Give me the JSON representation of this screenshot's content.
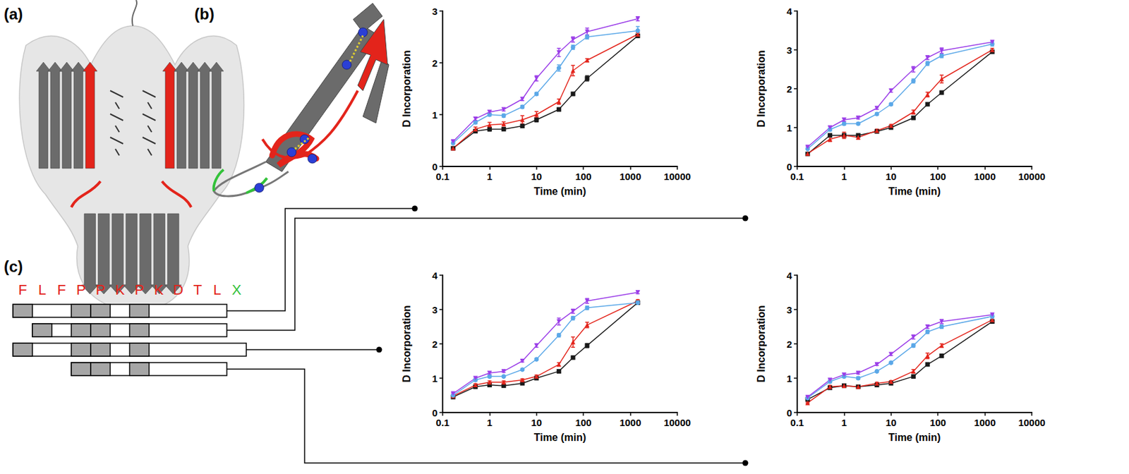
{
  "panel_labels": [
    "(a)",
    "(b)",
    "(c)"
  ],
  "sequence": [
    "F",
    "L",
    "F",
    "P",
    "P",
    "K",
    "P",
    "K",
    "D",
    "T",
    "L",
    "X"
  ],
  "sequence_colors": [
    "#e3241b",
    "#e3241b",
    "#e3241b",
    "#e3241b",
    "#e3241b",
    "#e3241b",
    "#e3241b",
    "#e3241b",
    "#e3241b",
    "#e3241b",
    "#e3241b",
    "#33c23a"
  ],
  "peptides": [
    {
      "start": 0,
      "end": 10,
      "shaded": [
        0,
        3,
        4,
        6
      ]
    },
    {
      "start": 1,
      "end": 10,
      "shaded": [
        1,
        3,
        4,
        6
      ]
    },
    {
      "start": 0,
      "end": 11,
      "shaded": [
        0,
        3,
        4,
        6
      ]
    },
    {
      "start": 3,
      "end": 10,
      "shaded": [
        3,
        4,
        6
      ]
    }
  ],
  "chart_data": [
    {
      "type": "line",
      "xlabel": "Time (min)",
      "ylabel": "D Incorporation",
      "log": "x",
      "grid": false,
      "x": [
        0.167,
        0.5,
        1,
        2,
        5,
        10,
        30,
        60,
        120,
        1440
      ],
      "xlim": [
        0.1,
        10000
      ],
      "xticks": [
        0.1,
        1,
        10,
        100,
        1000,
        10000
      ],
      "ylim": [
        0,
        3
      ],
      "yticks": [
        0,
        1,
        2,
        3
      ],
      "series": [
        {
          "color": "#1a1a1a",
          "marker": "square",
          "values": [
            0.35,
            0.68,
            0.72,
            0.72,
            0.78,
            0.9,
            1.1,
            1.4,
            1.7,
            2.52
          ],
          "errors": [
            0.02,
            0.03,
            0.04,
            0.03,
            0.03,
            0.04,
            0.03,
            0.03,
            0.05,
            0.03
          ]
        },
        {
          "color": "#e3241b",
          "marker": "triangle",
          "values": [
            0.35,
            0.72,
            0.8,
            0.82,
            0.9,
            1.0,
            1.25,
            1.85,
            2.05,
            2.55
          ],
          "errors": [
            0.02,
            0.04,
            0.05,
            0.04,
            0.08,
            0.06,
            0.05,
            0.1,
            0.03,
            0.03
          ]
        },
        {
          "color": "#5ba8e8",
          "marker": "circle",
          "values": [
            0.45,
            0.85,
            1.0,
            0.98,
            1.15,
            1.4,
            1.9,
            2.3,
            2.5,
            2.62
          ],
          "errors": [
            0.02,
            0.03,
            0.03,
            0.03,
            0.03,
            0.03,
            0.06,
            0.04,
            0.04,
            0.08
          ]
        },
        {
          "color": "#9b3ee8",
          "marker": "triangle-down",
          "values": [
            0.48,
            0.92,
            1.05,
            1.1,
            1.3,
            1.7,
            2.2,
            2.45,
            2.6,
            2.85
          ],
          "errors": [
            0.02,
            0.03,
            0.03,
            0.03,
            0.03,
            0.05,
            0.08,
            0.05,
            0.07,
            0.04
          ]
        }
      ]
    },
    {
      "type": "line",
      "xlabel": "Time (min)",
      "ylabel": "D Incorporation",
      "log": "x",
      "grid": false,
      "x": [
        0.167,
        0.5,
        1,
        2,
        5,
        10,
        30,
        60,
        120,
        1440
      ],
      "xlim": [
        0.1,
        10000
      ],
      "xticks": [
        0.1,
        1,
        10,
        100,
        1000,
        10000
      ],
      "ylim": [
        0,
        4
      ],
      "yticks": [
        0,
        1,
        2,
        3,
        4
      ],
      "series": [
        {
          "color": "#1a1a1a",
          "marker": "square",
          "values": [
            0.32,
            0.8,
            0.8,
            0.8,
            0.9,
            1.0,
            1.25,
            1.6,
            1.9,
            2.95
          ],
          "errors": [
            0.02,
            0.04,
            0.04,
            0.03,
            0.03,
            0.03,
            0.04,
            0.03,
            0.04,
            0.03
          ]
        },
        {
          "color": "#e3241b",
          "marker": "triangle",
          "values": [
            0.33,
            0.7,
            0.8,
            0.75,
            0.92,
            1.05,
            1.4,
            1.85,
            2.25,
            3.0
          ],
          "errors": [
            0.02,
            0.06,
            0.08,
            0.05,
            0.04,
            0.03,
            0.05,
            0.06,
            0.1,
            0.04
          ]
        },
        {
          "color": "#5ba8e8",
          "marker": "circle",
          "values": [
            0.45,
            0.95,
            1.1,
            1.1,
            1.35,
            1.6,
            2.2,
            2.65,
            2.85,
            3.15
          ],
          "errors": [
            0.02,
            0.04,
            0.04,
            0.03,
            0.03,
            0.03,
            0.05,
            0.05,
            0.05,
            0.05
          ]
        },
        {
          "color": "#9b3ee8",
          "marker": "triangle-down",
          "values": [
            0.5,
            1.0,
            1.2,
            1.25,
            1.5,
            1.95,
            2.5,
            2.8,
            2.98,
            3.2
          ],
          "errors": [
            0.02,
            0.03,
            0.04,
            0.03,
            0.03,
            0.04,
            0.07,
            0.05,
            0.07,
            0.04
          ]
        }
      ]
    },
    {
      "type": "line",
      "xlabel": "Time (min)",
      "ylabel": "D Incorporation",
      "log": "x",
      "grid": false,
      "x": [
        0.167,
        0.5,
        1,
        2,
        5,
        10,
        30,
        60,
        120,
        1440
      ],
      "xlim": [
        0.1,
        10000
      ],
      "xticks": [
        0.1,
        1,
        10,
        100,
        1000,
        10000
      ],
      "ylim": [
        0,
        4
      ],
      "yticks": [
        0,
        1,
        2,
        3,
        4
      ],
      "series": [
        {
          "color": "#1a1a1a",
          "marker": "square",
          "values": [
            0.45,
            0.75,
            0.8,
            0.78,
            0.85,
            1.0,
            1.2,
            1.6,
            1.95,
            3.2
          ],
          "errors": [
            0.02,
            0.04,
            0.04,
            0.03,
            0.03,
            0.04,
            0.04,
            0.04,
            0.06,
            0.03
          ]
        },
        {
          "color": "#e3241b",
          "marker": "triangle",
          "values": [
            0.48,
            0.8,
            0.88,
            0.88,
            0.95,
            1.05,
            1.4,
            2.05,
            2.55,
            3.25
          ],
          "errors": [
            0.02,
            0.04,
            0.04,
            0.04,
            0.03,
            0.04,
            0.05,
            0.15,
            0.08,
            0.04
          ]
        },
        {
          "color": "#5ba8e8",
          "marker": "circle",
          "values": [
            0.5,
            0.95,
            1.05,
            1.05,
            1.25,
            1.55,
            2.25,
            2.75,
            3.05,
            3.2
          ],
          "errors": [
            0.02,
            0.04,
            0.04,
            0.03,
            0.03,
            0.03,
            0.05,
            0.05,
            0.05,
            0.05
          ]
        },
        {
          "color": "#9b3ee8",
          "marker": "triangle-down",
          "values": [
            0.55,
            1.0,
            1.15,
            1.2,
            1.5,
            1.95,
            2.65,
            2.95,
            3.25,
            3.5
          ],
          "errors": [
            0.02,
            0.03,
            0.04,
            0.03,
            0.03,
            0.05,
            0.1,
            0.06,
            0.07,
            0.04
          ]
        }
      ]
    },
    {
      "type": "line",
      "xlabel": "Time (min)",
      "ylabel": "D Incorporation",
      "log": "x",
      "grid": false,
      "x": [
        0.167,
        0.5,
        1,
        2,
        5,
        10,
        30,
        60,
        120,
        1440
      ],
      "xlim": [
        0.1,
        10000
      ],
      "xticks": [
        0.1,
        1,
        10,
        100,
        1000,
        10000
      ],
      "ylim": [
        0,
        4
      ],
      "yticks": [
        0,
        1,
        2,
        3,
        4
      ],
      "series": [
        {
          "color": "#1a1a1a",
          "marker": "square",
          "values": [
            0.38,
            0.72,
            0.78,
            0.75,
            0.8,
            0.85,
            1.05,
            1.4,
            1.65,
            2.65
          ],
          "errors": [
            0.02,
            0.03,
            0.04,
            0.03,
            0.03,
            0.03,
            0.04,
            0.04,
            0.05,
            0.03
          ]
        },
        {
          "color": "#e3241b",
          "marker": "triangle",
          "values": [
            0.28,
            0.75,
            0.78,
            0.75,
            0.85,
            0.9,
            1.2,
            1.65,
            1.95,
            2.7
          ],
          "errors": [
            0.02,
            0.04,
            0.04,
            0.04,
            0.03,
            0.03,
            0.05,
            0.08,
            0.05,
            0.04
          ]
        },
        {
          "color": "#5ba8e8",
          "marker": "circle",
          "values": [
            0.42,
            0.9,
            1.05,
            1.0,
            1.2,
            1.45,
            1.95,
            2.35,
            2.5,
            2.8
          ],
          "errors": [
            0.02,
            0.04,
            0.04,
            0.04,
            0.03,
            0.03,
            0.05,
            0.05,
            0.05,
            0.05
          ]
        },
        {
          "color": "#9b3ee8",
          "marker": "triangle-down",
          "values": [
            0.45,
            0.95,
            1.1,
            1.15,
            1.4,
            1.7,
            2.2,
            2.5,
            2.65,
            2.85
          ],
          "errors": [
            0.02,
            0.03,
            0.04,
            0.03,
            0.03,
            0.04,
            0.06,
            0.05,
            0.06,
            0.04
          ]
        }
      ]
    }
  ]
}
